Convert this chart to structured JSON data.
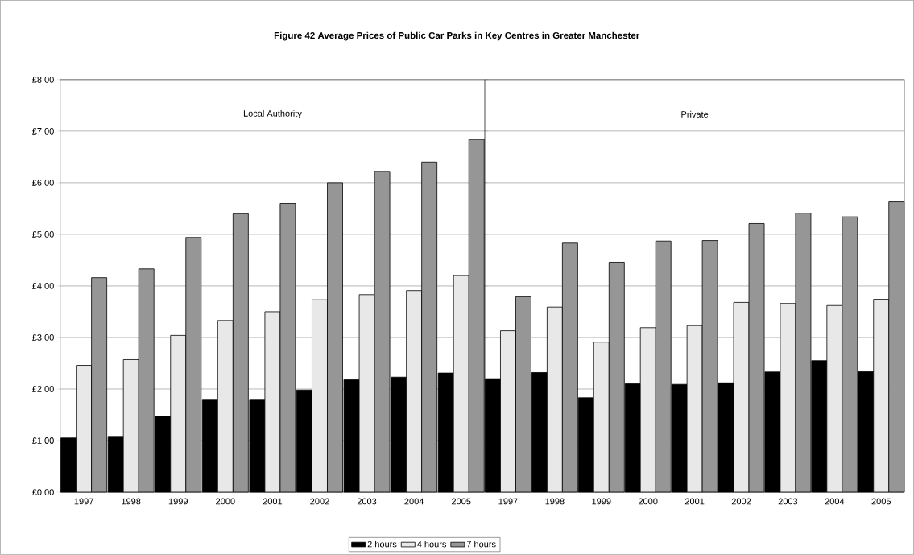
{
  "chart_data": [
    {
      "type": "bar",
      "title": "Figure 42 Average Prices of Public Car Parks in Key Centres in Greater Manchester",
      "subtitle": "Local Authority",
      "categories": [
        "1997",
        "1998",
        "1999",
        "2000",
        "2001",
        "2002",
        "2003",
        "2004",
        "2005"
      ],
      "series": [
        {
          "name": "2 hours",
          "color": "#000000",
          "values": [
            1.05,
            1.08,
            1.47,
            1.8,
            1.8,
            1.98,
            2.18,
            2.23,
            2.31
          ]
        },
        {
          "name": "4 hours",
          "color": "#e8e8e8",
          "values": [
            2.46,
            2.57,
            3.04,
            3.33,
            3.5,
            3.73,
            3.83,
            3.91,
            4.2
          ]
        },
        {
          "name": "7 hours",
          "color": "#969696",
          "values": [
            4.16,
            4.33,
            4.94,
            5.4,
            5.6,
            6.0,
            6.22,
            6.4,
            6.84
          ]
        }
      ],
      "ylim": [
        0,
        8
      ],
      "yticks": [
        {
          "value": 0,
          "label": "£0.00"
        },
        {
          "value": 1,
          "label": "£1.00"
        },
        {
          "value": 2,
          "label": "£2.00"
        },
        {
          "value": 3,
          "label": "£3.00"
        },
        {
          "value": 4,
          "label": "£4.00"
        },
        {
          "value": 5,
          "label": "£5.00"
        },
        {
          "value": 6,
          "label": "£6.00"
        },
        {
          "value": 7,
          "label": "£7.00"
        },
        {
          "value": 8,
          "label": "£8.00"
        }
      ],
      "grid": "y",
      "legend": "bottom"
    },
    {
      "type": "bar",
      "subtitle": "Private",
      "categories": [
        "1997",
        "1998",
        "1999",
        "2000",
        "2001",
        "2002",
        "2003",
        "2004",
        "2005"
      ],
      "series": [
        {
          "color": "#000000",
          "values": [
            2.2,
            2.32,
            1.83,
            2.1,
            2.09,
            2.12,
            2.33,
            2.55,
            2.34
          ]
        },
        {
          "color": "#e8e8e8",
          "values": [
            3.13,
            3.59,
            2.91,
            3.19,
            3.23,
            3.68,
            3.66,
            3.62,
            3.74
          ]
        },
        {
          "color": "#969696",
          "values": [
            3.79,
            4.83,
            4.46,
            4.87,
            4.88,
            5.21,
            5.41,
            5.34,
            5.63
          ]
        }
      ],
      "ylim": [
        0,
        8
      ],
      "yticks": [
        {
          "value": 0,
          "label": null
        },
        {
          "value": 1,
          "label": null
        },
        {
          "value": 2,
          "label": null
        },
        {
          "value": 3,
          "label": null
        },
        {
          "value": 4,
          "label": null
        },
        {
          "value": 5,
          "label": null
        },
        {
          "value": 6,
          "label": null
        },
        {
          "value": 7,
          "label": null
        },
        {
          "value": 8,
          "label": null
        }
      ],
      "grid": "y",
      "tick_labels": "x"
    }
  ]
}
